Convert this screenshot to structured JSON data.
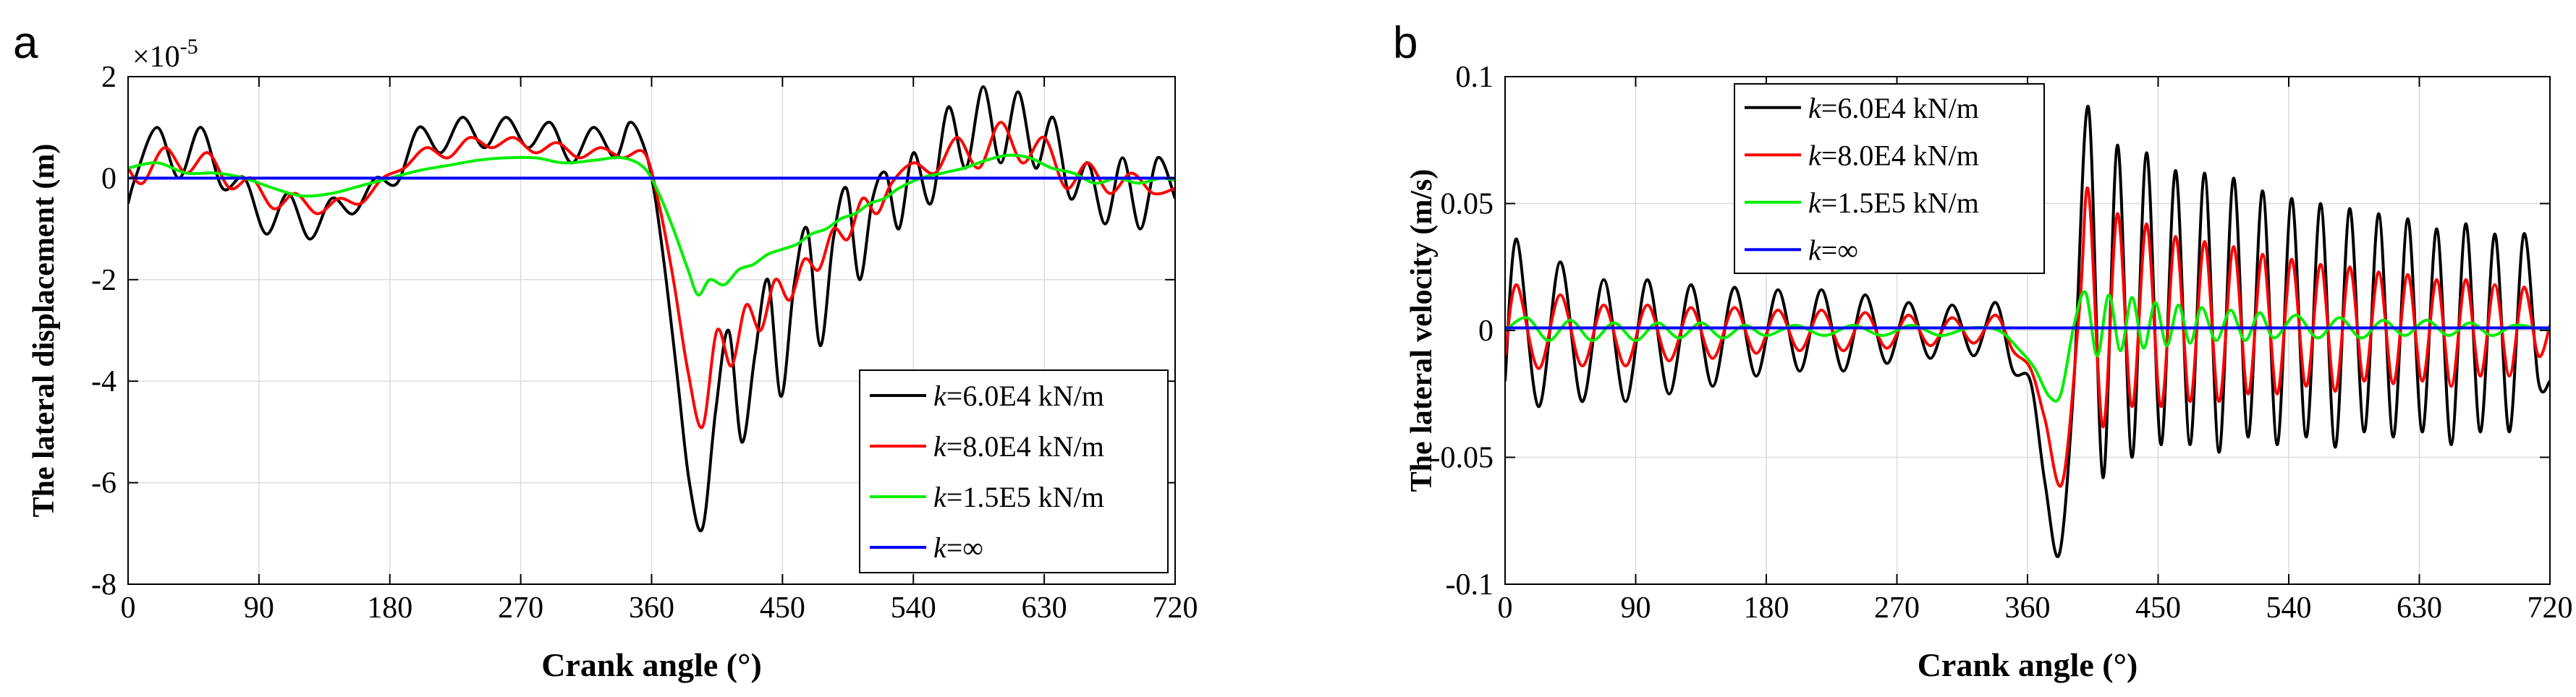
{
  "chart_data": [
    {
      "panel_label": "a",
      "type": "line",
      "xlabel": "Crank angle (°)",
      "ylabel": "The lateral displacement (m)",
      "multiplier": "×10",
      "multiplier_exp": "-5",
      "xlim": [
        0,
        720
      ],
      "ylim": [
        -8,
        2
      ],
      "xticks": [
        0,
        90,
        180,
        270,
        360,
        450,
        540,
        630,
        720
      ],
      "xtick_labels": [
        "0",
        "90",
        "180",
        "270",
        "360",
        "450",
        "540",
        "630",
        "720"
      ],
      "yticks": [
        -8,
        -6,
        -4,
        -2,
        0,
        2
      ],
      "ytick_labels": [
        "-8",
        "-6",
        "-4",
        "-2",
        "0",
        "2"
      ],
      "grid": true,
      "legend_position": "lower-right",
      "series": [
        {
          "name": "6.0E4 kN/m",
          "k": "k",
          "rest": "=6.0E4 kN/m",
          "color": "#000000",
          "x": [
            0,
            5,
            20,
            35,
            50,
            65,
            80,
            95,
            110,
            125,
            140,
            155,
            170,
            185,
            200,
            215,
            230,
            245,
            260,
            275,
            290,
            305,
            320,
            335,
            345,
            355,
            362,
            370,
            378,
            386,
            395,
            404,
            413,
            422,
            431,
            440,
            449,
            458,
            467,
            476,
            485,
            494,
            503,
            512,
            521,
            530,
            540,
            552,
            564,
            576,
            588,
            600,
            612,
            624,
            636,
            648,
            660,
            672,
            684,
            696,
            708,
            720
          ],
          "values": [
            -0.5,
            0,
            1.0,
            0,
            1.0,
            -0.2,
            0,
            -1.1,
            -0.3,
            -1.2,
            -0.4,
            -0.7,
            0,
            -0.1,
            1.0,
            0.5,
            1.2,
            0.6,
            1.2,
            0.6,
            1.1,
            0.3,
            1.0,
            0.4,
            1.1,
            0.6,
            -0.3,
            -2.0,
            -4.0,
            -6.0,
            -6.9,
            -4.6,
            -3.0,
            -5.2,
            -3.5,
            -2.0,
            -4.3,
            -2.1,
            -1.0,
            -3.3,
            -1.2,
            -0.2,
            -2.0,
            -0.4,
            0.1,
            -1.0,
            0.5,
            -0.5,
            1.4,
            0.2,
            1.8,
            0.3,
            1.7,
            0.2,
            1.2,
            -0.4,
            0.3,
            -0.9,
            0.4,
            -1.0,
            0.4,
            -0.4
          ]
        },
        {
          "name": "8.0E4 kN/m",
          "k": "k",
          "rest": "=8.0E4 kN/m",
          "color": "#ff0000",
          "x": [
            0,
            10,
            25,
            40,
            55,
            70,
            85,
            100,
            115,
            130,
            145,
            160,
            175,
            190,
            205,
            220,
            235,
            250,
            265,
            280,
            295,
            310,
            325,
            340,
            355,
            365,
            375,
            385,
            395,
            405,
            415,
            425,
            435,
            445,
            455,
            465,
            475,
            485,
            495,
            505,
            515,
            525,
            540,
            555,
            570,
            585,
            600,
            615,
            630,
            645,
            660,
            675,
            690,
            705,
            720
          ],
          "values": [
            0.2,
            -0.1,
            0.6,
            0.1,
            0.5,
            -0.2,
            0,
            -0.6,
            -0.3,
            -0.7,
            -0.4,
            -0.5,
            0,
            0.2,
            0.6,
            0.4,
            0.8,
            0.6,
            0.8,
            0.5,
            0.7,
            0.4,
            0.6,
            0.4,
            0.5,
            -0.5,
            -2.0,
            -3.8,
            -4.9,
            -3.0,
            -3.7,
            -2.5,
            -3.0,
            -2.0,
            -2.4,
            -1.6,
            -1.8,
            -1.0,
            -1.2,
            -0.4,
            -0.7,
            -0.1,
            0.3,
            0.1,
            0.8,
            0.2,
            1.1,
            0.3,
            0.8,
            -0.2,
            0.3,
            -0.3,
            0.1,
            -0.3,
            -0.2
          ]
        },
        {
          "name": "1.5E5 kN/m",
          "k": "k",
          "rest": "=1.5E5 kN/m",
          "color": "#00ee00",
          "x": [
            0,
            20,
            40,
            60,
            80,
            100,
            120,
            140,
            160,
            180,
            200,
            220,
            240,
            260,
            280,
            300,
            320,
            340,
            355,
            365,
            375,
            385,
            392,
            400,
            410,
            420,
            430,
            440,
            450,
            460,
            470,
            480,
            490,
            500,
            510,
            520,
            530,
            545,
            560,
            575,
            590,
            605,
            620,
            635,
            650,
            665,
            680,
            695,
            710,
            720
          ],
          "values": [
            0.2,
            0.3,
            0.1,
            0.1,
            0,
            -0.2,
            -0.35,
            -0.3,
            -0.15,
            0,
            0.15,
            0.25,
            0.35,
            0.4,
            0.4,
            0.3,
            0.35,
            0.4,
            0.2,
            -0.3,
            -1.0,
            -1.8,
            -2.3,
            -2.0,
            -2.1,
            -1.8,
            -1.7,
            -1.5,
            -1.4,
            -1.3,
            -1.1,
            -1.0,
            -0.8,
            -0.7,
            -0.5,
            -0.4,
            -0.2,
            0,
            0.1,
            0.2,
            0.35,
            0.45,
            0.4,
            0.2,
            0.1,
            -0.1,
            0,
            -0.1,
            0,
            -0.05
          ]
        },
        {
          "name": "∞",
          "k": "k",
          "rest": "=∞",
          "color": "#0000ff",
          "x": [
            0,
            720
          ],
          "values": [
            0,
            0
          ]
        }
      ]
    },
    {
      "panel_label": "b",
      "type": "line",
      "xlabel": "Crank angle (°)",
      "ylabel": "The lateral velocity (m/s)",
      "xlim": [
        0,
        720
      ],
      "ylim": [
        -0.1,
        0.1
      ],
      "xticks": [
        0,
        90,
        180,
        270,
        360,
        450,
        540,
        630,
        720
      ],
      "xtick_labels": [
        "0",
        "90",
        "180",
        "270",
        "360",
        "450",
        "540",
        "630",
        "720"
      ],
      "yticks": [
        -0.1,
        -0.05,
        0,
        0.05,
        0.1
      ],
      "ytick_labels": [
        "-0.1",
        "-0.05",
        "0",
        "0.05",
        "0.1"
      ],
      "grid": true,
      "legend_position": "top-left",
      "series": [
        {
          "name": "6.0E4 kN/m",
          "k": "k",
          "rest": "=6.0E4 kN/m",
          "color": "#000000",
          "x": [
            0,
            8,
            23,
            38,
            53,
            68,
            83,
            98,
            113,
            128,
            143,
            158,
            173,
            188,
            203,
            218,
            233,
            248,
            263,
            278,
            293,
            308,
            323,
            338,
            350,
            362,
            372,
            382,
            392,
            402,
            412,
            422,
            432,
            442,
            452,
            462,
            472,
            482,
            492,
            502,
            512,
            522,
            532,
            542,
            552,
            562,
            572,
            582,
            592,
            602,
            612,
            622,
            632,
            642,
            652,
            662,
            672,
            682,
            692,
            702,
            712,
            720
          ],
          "values": [
            -0.02,
            0.036,
            -0.03,
            0.027,
            -0.028,
            0.02,
            -0.028,
            0.02,
            -0.025,
            0.018,
            -0.022,
            0.017,
            -0.018,
            0.016,
            -0.016,
            0.016,
            -0.016,
            0.014,
            -0.013,
            0.011,
            -0.011,
            0.01,
            -0.01,
            0.011,
            -0.016,
            -0.02,
            -0.06,
            -0.088,
            -0.02,
            0.088,
            -0.058,
            0.073,
            -0.05,
            0.07,
            -0.045,
            0.063,
            -0.045,
            0.062,
            -0.048,
            0.06,
            -0.042,
            0.055,
            -0.045,
            0.052,
            -0.042,
            0.05,
            -0.046,
            0.048,
            -0.04,
            0.046,
            -0.042,
            0.044,
            -0.04,
            0.04,
            -0.045,
            0.042,
            -0.04,
            0.038,
            -0.04,
            0.038,
            -0.02,
            -0.02
          ]
        },
        {
          "name": "8.0E4 kN/m",
          "k": "k",
          "rest": "=8.0E4 kN/m",
          "color": "#ff0000",
          "x": [
            0,
            8,
            23,
            38,
            53,
            68,
            83,
            98,
            113,
            128,
            143,
            158,
            173,
            188,
            203,
            218,
            233,
            248,
            263,
            278,
            293,
            308,
            323,
            338,
            350,
            362,
            372,
            384,
            396,
            402,
            412,
            422,
            432,
            442,
            452,
            462,
            472,
            482,
            492,
            502,
            512,
            522,
            532,
            542,
            552,
            562,
            572,
            582,
            592,
            602,
            612,
            622,
            632,
            642,
            652,
            662,
            672,
            682,
            692,
            702,
            712,
            720
          ],
          "values": [
            -0.01,
            0.018,
            -0.015,
            0.014,
            -0.014,
            0.01,
            -0.014,
            0.01,
            -0.012,
            0.009,
            -0.011,
            0.009,
            -0.009,
            0.008,
            -0.008,
            0.008,
            -0.008,
            0.007,
            -0.007,
            0.006,
            -0.006,
            0.005,
            -0.005,
            0.006,
            -0.008,
            -0.015,
            -0.035,
            -0.06,
            0.01,
            0.055,
            -0.038,
            0.046,
            -0.03,
            0.042,
            -0.03,
            0.037,
            -0.028,
            0.035,
            -0.028,
            0.033,
            -0.025,
            0.03,
            -0.025,
            0.028,
            -0.022,
            0.026,
            -0.024,
            0.025,
            -0.02,
            0.023,
            -0.021,
            0.022,
            -0.02,
            0.02,
            -0.022,
            0.02,
            -0.018,
            0.018,
            -0.018,
            0.017,
            -0.01,
            0.002
          ]
        },
        {
          "name": "1.5E5 kN/m",
          "k": "k",
          "rest": "=1.5E5 kN/m",
          "color": "#00ee00",
          "x": [
            0,
            15,
            30,
            45,
            60,
            75,
            90,
            105,
            120,
            135,
            150,
            165,
            180,
            200,
            220,
            240,
            260,
            280,
            300,
            320,
            340,
            355,
            365,
            375,
            383,
            392,
            400,
            408,
            416,
            424,
            432,
            440,
            448,
            456,
            464,
            472,
            480,
            490,
            500,
            510,
            520,
            530,
            545,
            560,
            575,
            590,
            605,
            620,
            635,
            650,
            665,
            680,
            695,
            710,
            720
          ],
          "values": [
            0,
            0.005,
            -0.004,
            0.004,
            -0.004,
            0.003,
            -0.004,
            0.003,
            -0.003,
            0.003,
            -0.003,
            0.002,
            -0.002,
            0.002,
            -0.002,
            0.002,
            -0.002,
            0.002,
            -0.002,
            0.001,
            0,
            -0.008,
            -0.015,
            -0.026,
            -0.025,
            0.002,
            0.015,
            -0.01,
            0.014,
            -0.008,
            0.013,
            -0.007,
            0.011,
            -0.006,
            0.01,
            -0.005,
            0.009,
            -0.004,
            0.008,
            -0.004,
            0.007,
            -0.003,
            0.006,
            -0.003,
            0.005,
            -0.003,
            0.004,
            -0.002,
            0.004,
            -0.002,
            0.003,
            -0.002,
            0.002,
            0.001,
            0
          ]
        },
        {
          "name": "∞",
          "k": "k",
          "rest": "=∞",
          "color": "#0000ff",
          "x": [
            0,
            720
          ],
          "values": [
            0.001,
            0.001
          ]
        }
      ]
    }
  ]
}
